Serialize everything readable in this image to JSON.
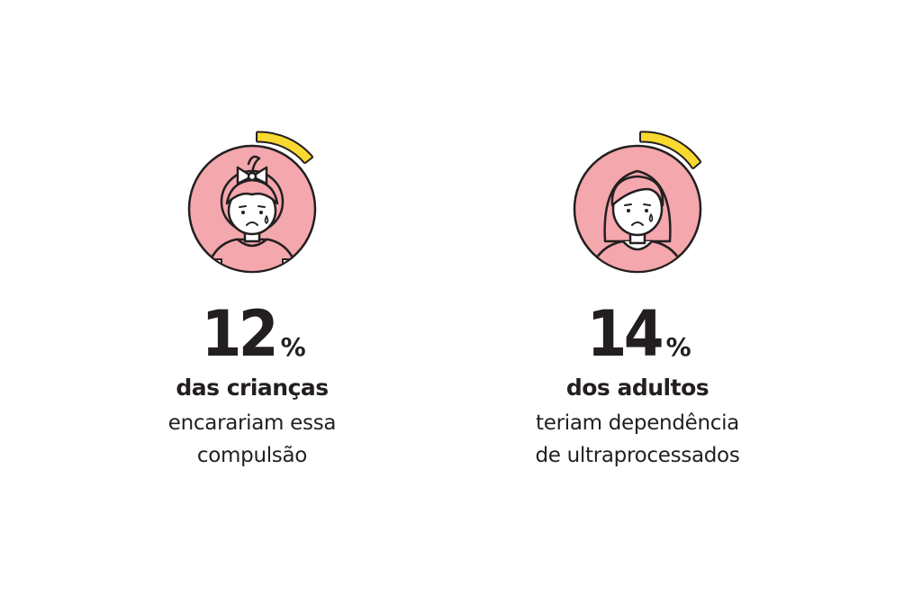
{
  "colors": {
    "circle_fill": "#f4a7ad",
    "outline": "#231f20",
    "accent_yellow": "#f9d930",
    "background": "#ffffff"
  },
  "stats": [
    {
      "icon": "girl-icon",
      "indicator_fraction": 0.12,
      "value": "12",
      "unit": "%",
      "subject": "das crianças",
      "lines": [
        "encarariam essa",
        "compulsão"
      ]
    },
    {
      "icon": "woman-icon",
      "indicator_fraction": 0.14,
      "value": "14",
      "unit": "%",
      "subject": "dos adultos",
      "lines": [
        "teriam dependência",
        "de ultraprocessados"
      ]
    }
  ]
}
